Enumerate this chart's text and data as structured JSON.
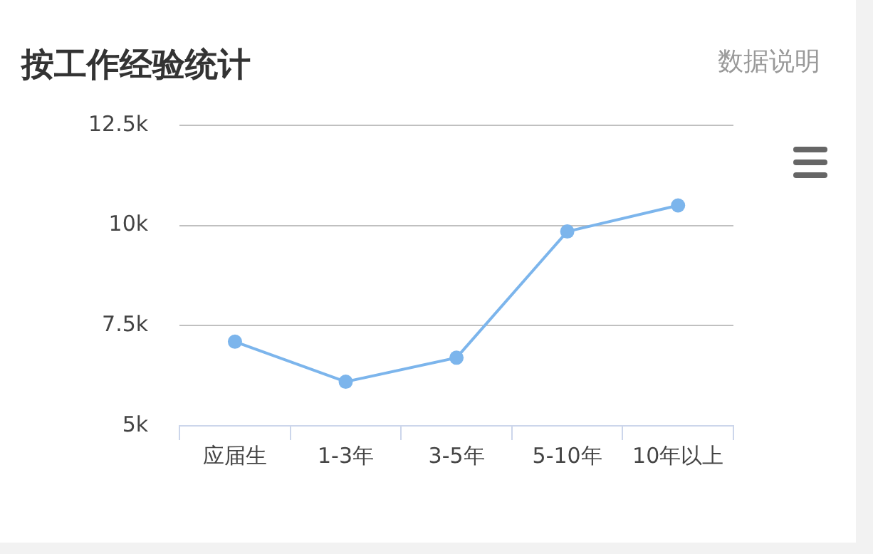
{
  "chart_data": {
    "type": "line",
    "title": "按工作经验统计",
    "annotations": [
      "数据说明"
    ],
    "categories": [
      "应届生",
      "1-3年",
      "3-5年",
      "5-10年",
      "10年以上"
    ],
    "series": [
      {
        "color": "#7cb5ec",
        "values": [
          7100,
          6100,
          6700,
          9850,
          10500
        ]
      }
    ],
    "ylim": [
      5000,
      12500
    ],
    "yticks": [
      {
        "value": 5000,
        "label": "5k"
      },
      {
        "value": 7500,
        "label": "7.5k"
      },
      {
        "value": 10000,
        "label": "10k"
      },
      {
        "value": 12500,
        "label": "12.5k"
      }
    ],
    "grid": "y",
    "legend": false,
    "marker": "circle",
    "line_style": "solid"
  }
}
